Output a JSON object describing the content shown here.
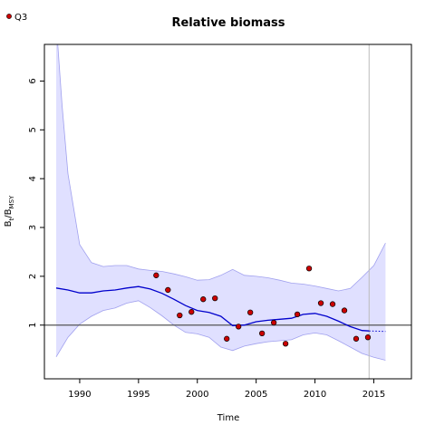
{
  "chart_data": {
    "type": "line",
    "title": "Relative biomass",
    "xlabel": "Time",
    "ylabel_main": "B",
    "ylabel_sub1": "t",
    "ylabel_mid": "/B",
    "ylabel_sub2": "MSY",
    "xlim": [
      1987,
      2018.2
    ],
    "ylim": [
      -0.1,
      6.75
    ],
    "xticks": [
      1990,
      1995,
      2000,
      2005,
      2010,
      2015
    ],
    "yticks": [
      1,
      2,
      3,
      4,
      5,
      6
    ],
    "reference_line_y": 1,
    "vertical_line_x": 2014.6,
    "grid": false,
    "legend": {
      "position": "top-left",
      "entries": [
        "Q3"
      ]
    },
    "colors": {
      "estimate": "#0000cc",
      "band_fill": "#e0e0ff",
      "band_edge": "#a0a0ee",
      "points": "#cc0000",
      "reference": "#555555",
      "vline": "#bbbbbb"
    },
    "series": [
      {
        "name": "Q3",
        "type": "scatter",
        "x": [
          1996.5,
          1997.5,
          1998.5,
          1999.5,
          2000.5,
          2001.5,
          2002.5,
          2003.5,
          2004.5,
          2005.5,
          2006.5,
          2007.5,
          2008.5,
          2009.5,
          2010.5,
          2011.5,
          2012.5,
          2013.5,
          2014.5
        ],
        "y": [
          2.02,
          1.72,
          1.2,
          1.27,
          1.53,
          1.55,
          0.72,
          0.97,
          1.26,
          0.83,
          1.05,
          0.62,
          1.22,
          2.16,
          1.45,
          1.43,
          1.3,
          0.72,
          0.75
        ]
      },
      {
        "type": "line",
        "x": [
          1988,
          1989,
          1990,
          1991,
          1992,
          1993,
          1994,
          1995,
          1996,
          1997,
          1998,
          1999,
          2000,
          2001,
          2002,
          2003,
          2004,
          2005,
          2006,
          2007,
          2008,
          2009,
          2010,
          2011,
          2012,
          2013,
          2014,
          2014.6
        ],
        "y": [
          1.76,
          1.72,
          1.66,
          1.66,
          1.7,
          1.72,
          1.76,
          1.79,
          1.74,
          1.65,
          1.53,
          1.4,
          1.3,
          1.26,
          1.18,
          0.99,
          1.0,
          1.07,
          1.1,
          1.12,
          1.14,
          1.22,
          1.24,
          1.18,
          1.08,
          0.97,
          0.89,
          0.88
        ]
      },
      {
        "type": "line-projection",
        "x": [
          2014.6,
          2016
        ],
        "y": [
          0.88,
          0.87
        ]
      },
      {
        "type": "band-upper",
        "x": [
          1988,
          1988.5,
          1989,
          1990,
          1991,
          1992,
          1993,
          1994,
          1995,
          1996,
          1997,
          1998,
          1999,
          2000,
          2001,
          2002,
          2003,
          2004,
          2005,
          2006,
          2007,
          2008,
          2009,
          2010,
          2011,
          2012,
          2013,
          2014,
          2015,
          2016
        ],
        "y": [
          7.2,
          5.5,
          4.1,
          2.65,
          2.28,
          2.2,
          2.22,
          2.22,
          2.15,
          2.12,
          2.1,
          2.05,
          1.99,
          1.92,
          1.93,
          2.02,
          2.14,
          2.02,
          2.0,
          1.97,
          1.92,
          1.86,
          1.84,
          1.8,
          1.75,
          1.7,
          1.75,
          1.98,
          2.22,
          2.68
        ]
      },
      {
        "type": "band-lower",
        "x": [
          1988,
          1989,
          1990,
          1991,
          1992,
          1993,
          1994,
          1995,
          1996,
          1997,
          1998,
          1999,
          2000,
          2001,
          2002,
          2003,
          2004,
          2005,
          2006,
          2007,
          2008,
          2009,
          2010,
          2011,
          2012,
          2013,
          2014,
          2015,
          2016
        ],
        "y": [
          0.35,
          0.75,
          1.02,
          1.18,
          1.3,
          1.35,
          1.45,
          1.5,
          1.36,
          1.19,
          1.0,
          0.85,
          0.82,
          0.75,
          0.55,
          0.48,
          0.57,
          0.62,
          0.66,
          0.68,
          0.7,
          0.8,
          0.84,
          0.8,
          0.68,
          0.55,
          0.42,
          0.34,
          0.28
        ]
      }
    ]
  }
}
